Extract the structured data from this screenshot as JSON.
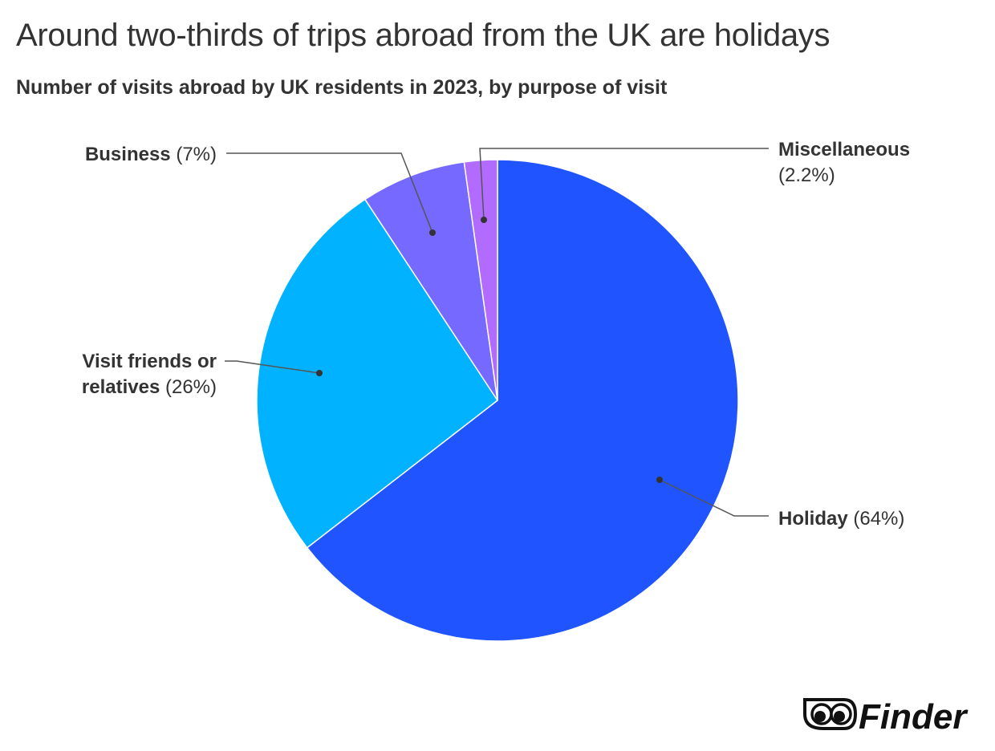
{
  "chart_data": {
    "type": "pie",
    "title": "Around two-thirds of trips abroad from the UK are holidays",
    "subtitle": "Number of visits abroad by UK residents in 2023, by purpose of visit",
    "slices": [
      {
        "name": "Holiday",
        "value": 64,
        "label": "(64%)",
        "color": "#1f54ff"
      },
      {
        "name": "Visit friends or relatives",
        "name_lines": [
          "Visit friends or",
          "relatives"
        ],
        "value": 26,
        "label": "(26%)",
        "color": "#00b2ff"
      },
      {
        "name": "Business",
        "value": 7,
        "label": "(7%)",
        "color": "#7669ff"
      },
      {
        "name": "Miscellaneous",
        "value": 2.2,
        "label": "(2.2%)",
        "color": "#b26bff"
      }
    ],
    "start": "top",
    "direction": "clockwise"
  },
  "logo": {
    "text": "Finder"
  }
}
